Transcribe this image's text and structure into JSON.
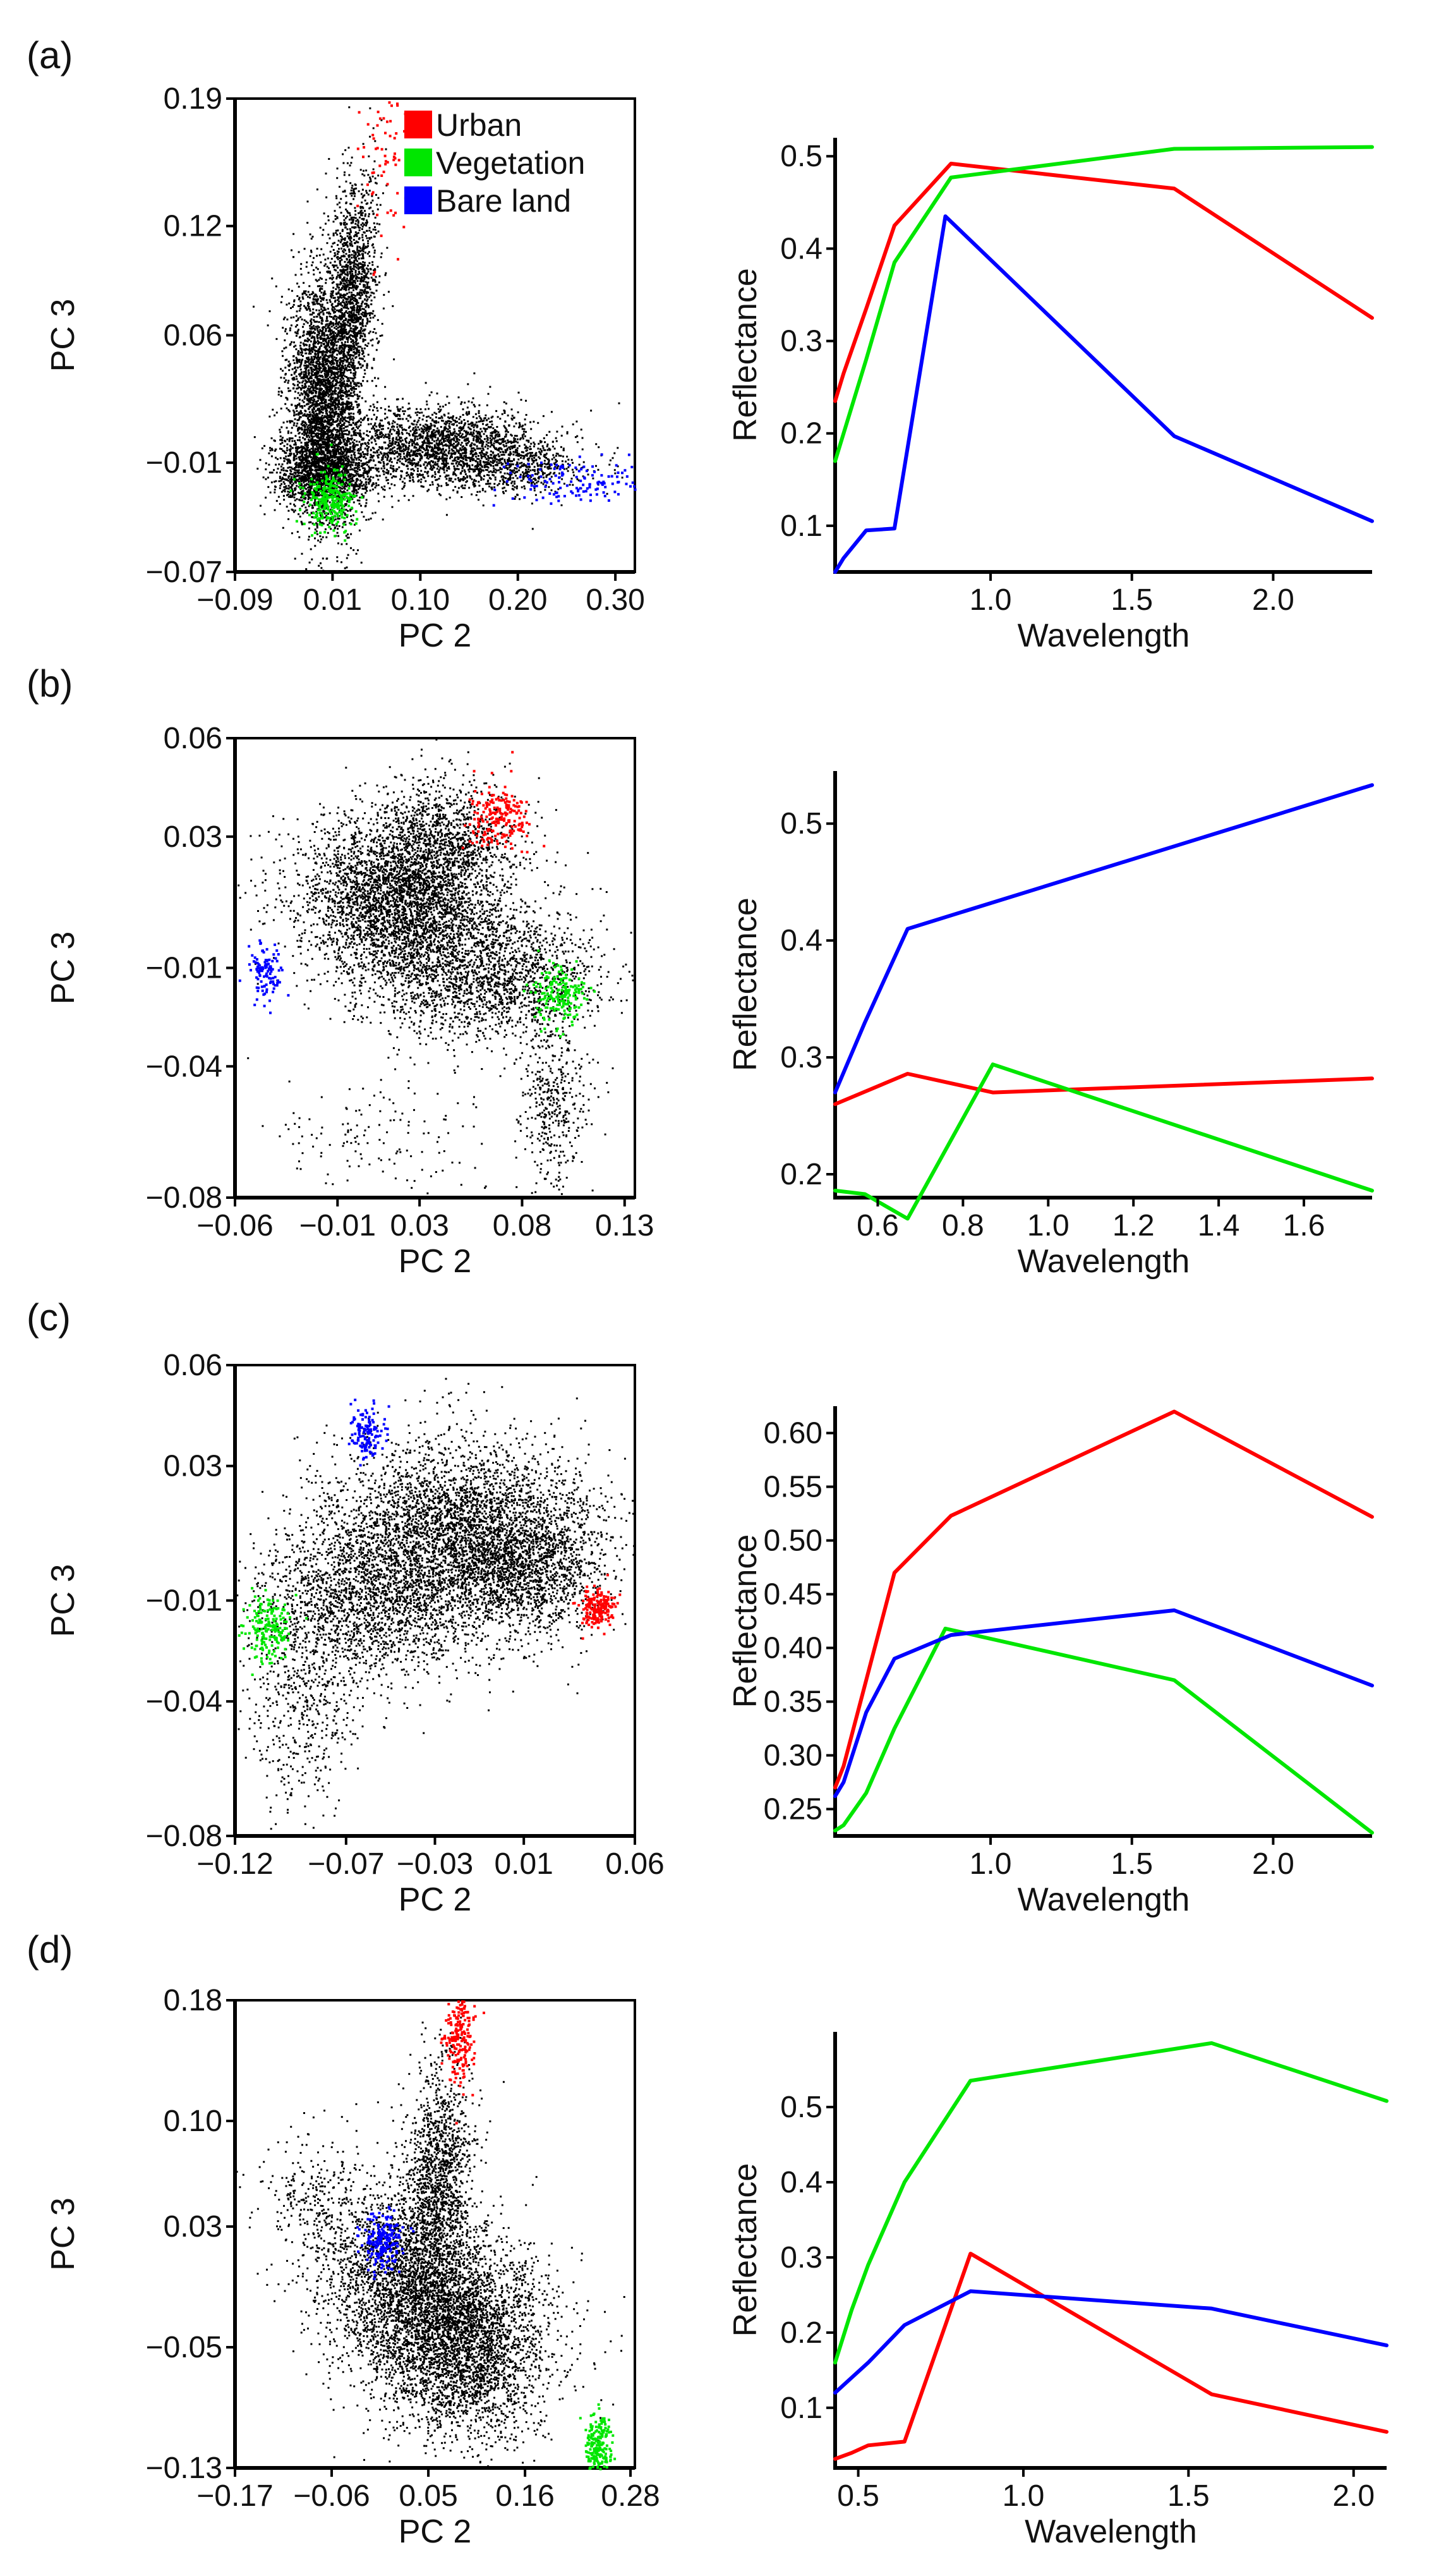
{
  "figure": {
    "colors": {
      "urban": "#ff0000",
      "vegetation": "#00e600",
      "bare_land": "#0000ff",
      "background": "#000000"
    }
  },
  "chart_data": [
    {
      "panel": "(a)",
      "type": "scatter",
      "title": "",
      "xlabel": "PC 2",
      "ylabel": "PC 3",
      "xlim": [
        -0.09,
        0.32
      ],
      "ylim": [
        -0.07,
        0.19
      ],
      "xticks": [
        {
          "v": -0.09,
          "label": "−0.09"
        },
        {
          "v": 0.01,
          "label": "0.01"
        },
        {
          "v": 0.1,
          "label": "0.10"
        },
        {
          "v": 0.2,
          "label": "0.20"
        },
        {
          "v": 0.3,
          "label": "0.30"
        }
      ],
      "yticks": [
        {
          "v": -0.07,
          "label": "−0.07"
        },
        {
          "v": -0.01,
          "label": "−0.01"
        },
        {
          "v": 0.06,
          "label": "0.06"
        },
        {
          "v": 0.12,
          "label": "0.12"
        },
        {
          "v": 0.19,
          "label": "0.19"
        }
      ],
      "legend": {
        "placement": "top-right",
        "entries": [
          {
            "name": "Urban",
            "color": "#ff0000"
          },
          {
            "name": "Vegetation",
            "color": "#00e600"
          },
          {
            "name": "Bare land",
            "color": "#0000ff"
          }
        ]
      },
      "series": [
        {
          "name": "Urban",
          "color": "#ff0000",
          "center": [
            0.065,
            0.16
          ],
          "spread": [
            0.012,
            0.028
          ],
          "direction": [
            0.45,
            1
          ],
          "n": 70
        },
        {
          "name": "Vegetation",
          "color": "#00e600",
          "center": [
            0.007,
            -0.03
          ],
          "spread": [
            0.013,
            0.008
          ],
          "n": 260
        },
        {
          "name": "Bare land",
          "color": "#0000ff",
          "center": [
            0.255,
            -0.019
          ],
          "spread": [
            0.035,
            0.006
          ],
          "direction": [
            1,
            -0.25
          ],
          "n": 130
        }
      ]
    },
    {
      "panel": "(a)",
      "type": "line",
      "title": "",
      "xlabel": "Wavelength",
      "ylabel": "Reflectance",
      "xlim": [
        0.45,
        2.35
      ],
      "ylim": [
        0.05,
        0.52
      ],
      "xticks": [
        {
          "v": 1.0,
          "label": "1.0"
        },
        {
          "v": 1.5,
          "label": "1.5"
        },
        {
          "v": 2.0,
          "label": "2.0"
        }
      ],
      "yticks": [
        {
          "v": 0.1,
          "label": "0.1"
        },
        {
          "v": 0.2,
          "label": "0.2"
        },
        {
          "v": 0.3,
          "label": "0.3"
        },
        {
          "v": 0.4,
          "label": "0.4"
        },
        {
          "v": 0.5,
          "label": "0.5"
        }
      ],
      "series": [
        {
          "name": "Urban",
          "color": "#ff0000",
          "points": [
            [
              0.45,
              0.235
            ],
            [
              0.48,
              0.265
            ],
            [
              0.56,
              0.335
            ],
            [
              0.66,
              0.425
            ],
            [
              0.86,
              0.492
            ],
            [
              1.65,
              0.465
            ],
            [
              2.35,
              0.325
            ]
          ]
        },
        {
          "name": "Vegetation",
          "color": "#00e600",
          "points": [
            [
              0.45,
              0.17
            ],
            [
              0.48,
              0.2
            ],
            [
              0.56,
              0.28
            ],
            [
              0.66,
              0.385
            ],
            [
              0.86,
              0.477
            ],
            [
              1.65,
              0.508
            ],
            [
              2.35,
              0.51
            ]
          ]
        },
        {
          "name": "Bare land",
          "color": "#0000ff",
          "points": [
            [
              0.45,
              0.05
            ],
            [
              0.48,
              0.065
            ],
            [
              0.56,
              0.095
            ],
            [
              0.66,
              0.097
            ],
            [
              0.84,
              0.435
            ],
            [
              1.65,
              0.197
            ],
            [
              2.35,
              0.105
            ]
          ]
        }
      ]
    },
    {
      "panel": "(b)",
      "type": "scatter",
      "title": "",
      "xlabel": "PC 2",
      "ylabel": "PC 3",
      "xlim": [
        -0.06,
        0.135
      ],
      "ylim": [
        -0.08,
        0.06
      ],
      "xticks": [
        {
          "v": -0.06,
          "label": "−0.06"
        },
        {
          "v": -0.01,
          "label": "−0.01"
        },
        {
          "v": 0.03,
          "label": "0.03"
        },
        {
          "v": 0.08,
          "label": "0.08"
        },
        {
          "v": 0.13,
          "label": "0.13"
        }
      ],
      "yticks": [
        {
          "v": -0.08,
          "label": "−0.08"
        },
        {
          "v": -0.04,
          "label": "−0.04"
        },
        {
          "v": -0.01,
          "label": "−0.01"
        },
        {
          "v": 0.03,
          "label": "0.03"
        },
        {
          "v": 0.06,
          "label": "0.06"
        }
      ],
      "series": [
        {
          "name": "Urban",
          "color": "#ff0000",
          "center": [
            0.068,
            0.037
          ],
          "spread": [
            0.007,
            0.005
          ],
          "n": 200
        },
        {
          "name": "Vegetation",
          "color": "#00e600",
          "center": [
            0.098,
            -0.018
          ],
          "spread": [
            0.007,
            0.005
          ],
          "n": 180
        },
        {
          "name": "Bare land",
          "color": "#0000ff",
          "center": [
            -0.046,
            -0.011
          ],
          "spread": [
            0.004,
            0.004
          ],
          "n": 110
        }
      ]
    },
    {
      "panel": "(b)",
      "type": "line",
      "title": "",
      "xlabel": "Wavelength",
      "ylabel": "Reflectance",
      "xlim": [
        0.5,
        1.76
      ],
      "ylim": [
        0.18,
        0.545
      ],
      "xticks": [
        {
          "v": 0.6,
          "label": "0.6"
        },
        {
          "v": 0.8,
          "label": "0.8"
        },
        {
          "v": 1.0,
          "label": "1.0"
        },
        {
          "v": 1.2,
          "label": "1.2"
        },
        {
          "v": 1.4,
          "label": "1.4"
        },
        {
          "v": 1.6,
          "label": "1.6"
        }
      ],
      "yticks": [
        {
          "v": 0.2,
          "label": "0.2"
        },
        {
          "v": 0.3,
          "label": "0.3"
        },
        {
          "v": 0.4,
          "label": "0.4"
        },
        {
          "v": 0.5,
          "label": "0.5"
        }
      ],
      "series": [
        {
          "name": "Urban",
          "color": "#ff0000",
          "points": [
            [
              0.5,
              0.26
            ],
            [
              0.67,
              0.286
            ],
            [
              0.87,
              0.27
            ],
            [
              1.76,
              0.282
            ]
          ]
        },
        {
          "name": "Vegetation",
          "color": "#00e600",
          "points": [
            [
              0.5,
              0.186
            ],
            [
              0.57,
              0.183
            ],
            [
              0.67,
              0.162
            ],
            [
              0.87,
              0.294
            ],
            [
              1.76,
              0.186
            ]
          ]
        },
        {
          "name": "Bare land",
          "color": "#0000ff",
          "points": [
            [
              0.5,
              0.27
            ],
            [
              0.57,
              0.33
            ],
            [
              0.67,
              0.41
            ],
            [
              1.76,
              0.533
            ]
          ]
        }
      ]
    },
    {
      "panel": "(c)",
      "type": "scatter",
      "title": "",
      "xlabel": "PC 2",
      "ylabel": "PC 3",
      "xlim": [
        -0.12,
        0.06
      ],
      "ylim": [
        -0.08,
        0.06
      ],
      "xticks": [
        {
          "v": -0.12,
          "label": "−0.12"
        },
        {
          "v": -0.07,
          "label": "−0.07"
        },
        {
          "v": -0.03,
          "label": "−0.03"
        },
        {
          "v": 0.01,
          "label": "0.01"
        },
        {
          "v": 0.06,
          "label": "0.06"
        }
      ],
      "yticks": [
        {
          "v": -0.08,
          "label": "−0.08"
        },
        {
          "v": -0.04,
          "label": "−0.04"
        },
        {
          "v": -0.01,
          "label": "−0.01"
        },
        {
          "v": 0.03,
          "label": "0.03"
        },
        {
          "v": 0.06,
          "label": "0.06"
        }
      ],
      "series": [
        {
          "name": "Urban",
          "color": "#ff0000",
          "center": [
            0.043,
            -0.012
          ],
          "spread": [
            0.004,
            0.003
          ],
          "n": 180
        },
        {
          "name": "Vegetation",
          "color": "#00e600",
          "center": [
            -0.106,
            -0.018
          ],
          "spread": [
            0.005,
            0.005
          ],
          "n": 180
        },
        {
          "name": "Bare land",
          "color": "#0000ff",
          "center": [
            -0.061,
            0.04
          ],
          "spread": [
            0.004,
            0.004
          ],
          "n": 130
        }
      ]
    },
    {
      "panel": "(c)",
      "type": "line",
      "title": "",
      "xlabel": "Wavelength",
      "ylabel": "Reflectance",
      "xlim": [
        0.45,
        2.35
      ],
      "ylim": [
        0.225,
        0.625
      ],
      "xticks": [
        {
          "v": 1.0,
          "label": "1.0"
        },
        {
          "v": 1.5,
          "label": "1.5"
        },
        {
          "v": 2.0,
          "label": "2.0"
        }
      ],
      "yticks": [
        {
          "v": 0.25,
          "label": "0.25"
        },
        {
          "v": 0.3,
          "label": "0.30"
        },
        {
          "v": 0.35,
          "label": "0.35"
        },
        {
          "v": 0.4,
          "label": "0.40"
        },
        {
          "v": 0.45,
          "label": "0.45"
        },
        {
          "v": 0.5,
          "label": "0.50"
        },
        {
          "v": 0.55,
          "label": "0.55"
        },
        {
          "v": 0.6,
          "label": "0.60"
        }
      ],
      "series": [
        {
          "name": "Urban",
          "color": "#ff0000",
          "points": [
            [
              0.45,
              0.27
            ],
            [
              0.48,
              0.29
            ],
            [
              0.56,
              0.37
            ],
            [
              0.66,
              0.47
            ],
            [
              0.86,
              0.523
            ],
            [
              1.65,
              0.62
            ],
            [
              2.35,
              0.522
            ]
          ]
        },
        {
          "name": "Vegetation",
          "color": "#00e600",
          "points": [
            [
              0.45,
              0.23
            ],
            [
              0.48,
              0.235
            ],
            [
              0.56,
              0.265
            ],
            [
              0.66,
              0.325
            ],
            [
              0.84,
              0.418
            ],
            [
              1.65,
              0.37
            ],
            [
              2.35,
              0.228
            ]
          ]
        },
        {
          "name": "Bare land",
          "color": "#0000ff",
          "points": [
            [
              0.45,
              0.262
            ],
            [
              0.48,
              0.275
            ],
            [
              0.56,
              0.34
            ],
            [
              0.66,
              0.39
            ],
            [
              0.86,
              0.412
            ],
            [
              1.65,
              0.435
            ],
            [
              2.35,
              0.365
            ]
          ]
        }
      ]
    },
    {
      "panel": "(d)",
      "type": "scatter",
      "title": "",
      "xlabel": "PC 2",
      "ylabel": "PC 3",
      "xlim": [
        -0.17,
        0.285
      ],
      "ylim": [
        -0.13,
        0.18
      ],
      "xticks": [
        {
          "v": -0.17,
          "label": "−0.17"
        },
        {
          "v": -0.06,
          "label": "−0.06"
        },
        {
          "v": 0.05,
          "label": "0.05"
        },
        {
          "v": 0.16,
          "label": "0.16"
        },
        {
          "v": 0.28,
          "label": "0.28"
        }
      ],
      "yticks": [
        {
          "v": -0.13,
          "label": "−0.13"
        },
        {
          "v": -0.05,
          "label": "−0.05"
        },
        {
          "v": 0.03,
          "label": "0.03"
        },
        {
          "v": 0.1,
          "label": "0.10"
        },
        {
          "v": 0.18,
          "label": "0.18"
        }
      ],
      "series": [
        {
          "name": "Urban",
          "color": "#ff0000",
          "center": [
            0.085,
            0.155
          ],
          "spread": [
            0.008,
            0.014
          ],
          "direction": [
            0.4,
            1
          ],
          "n": 200
        },
        {
          "name": "Vegetation",
          "color": "#00e600",
          "center": [
            0.242,
            -0.115
          ],
          "spread": [
            0.008,
            0.01
          ],
          "n": 200
        },
        {
          "name": "Bare land",
          "color": "#0000ff",
          "center": [
            -0.002,
            0.022
          ],
          "spread": [
            0.011,
            0.01
          ],
          "n": 200
        }
      ]
    },
    {
      "panel": "(d)",
      "type": "line",
      "title": "",
      "xlabel": "Wavelength",
      "ylabel": "Reflectance",
      "xlim": [
        0.43,
        2.1
      ],
      "ylim": [
        0.02,
        0.6
      ],
      "xticks": [
        {
          "v": 0.5,
          "label": "0.5"
        },
        {
          "v": 1.0,
          "label": "1.0"
        },
        {
          "v": 1.5,
          "label": "1.5"
        },
        {
          "v": 2.0,
          "label": "2.0"
        }
      ],
      "yticks": [
        {
          "v": 0.1,
          "label": "0.1"
        },
        {
          "v": 0.2,
          "label": "0.2"
        },
        {
          "v": 0.3,
          "label": "0.3"
        },
        {
          "v": 0.4,
          "label": "0.4"
        },
        {
          "v": 0.5,
          "label": "0.5"
        }
      ],
      "series": [
        {
          "name": "Urban",
          "color": "#ff0000",
          "points": [
            [
              0.43,
              0.032
            ],
            [
              0.48,
              0.04
            ],
            [
              0.53,
              0.05
            ],
            [
              0.64,
              0.055
            ],
            [
              0.84,
              0.305
            ],
            [
              1.57,
              0.118
            ],
            [
              2.1,
              0.068
            ]
          ]
        },
        {
          "name": "Vegetation",
          "color": "#00e600",
          "points": [
            [
              0.43,
              0.16
            ],
            [
              0.48,
              0.23
            ],
            [
              0.53,
              0.29
            ],
            [
              0.64,
              0.4
            ],
            [
              0.84,
              0.535
            ],
            [
              1.57,
              0.585
            ],
            [
              2.1,
              0.508
            ]
          ]
        },
        {
          "name": "Bare land",
          "color": "#0000ff",
          "points": [
            [
              0.43,
              0.12
            ],
            [
              0.48,
              0.14
            ],
            [
              0.53,
              0.16
            ],
            [
              0.64,
              0.21
            ],
            [
              0.84,
              0.255
            ],
            [
              1.57,
              0.232
            ],
            [
              2.1,
              0.183
            ]
          ]
        }
      ]
    }
  ]
}
